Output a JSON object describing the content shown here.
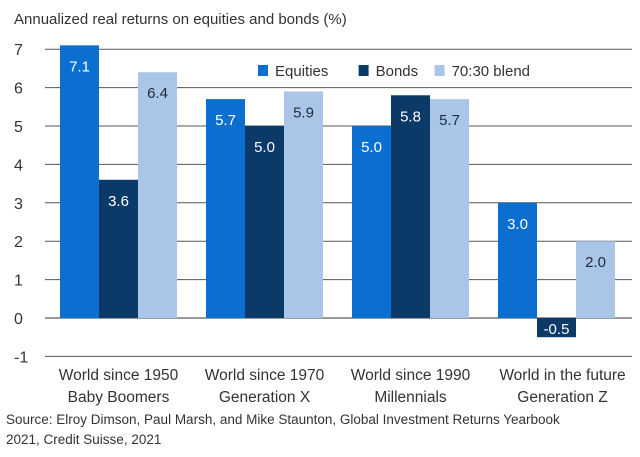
{
  "chart_data": {
    "type": "bar",
    "title": "Annualized real returns on equities and bonds (%)",
    "categories": [
      [
        "World since 1950",
        "Baby Boomers"
      ],
      [
        "World since 1970",
        "Generation X"
      ],
      [
        "World since 1990",
        "Millennials"
      ],
      [
        "World in the future",
        "Generation Z"
      ]
    ],
    "series": [
      {
        "name": "Equities",
        "color": "#0b6fcf",
        "label_color": "#ffffff",
        "values": [
          7.1,
          5.7,
          5.0,
          3.0
        ]
      },
      {
        "name": "Bonds",
        "color": "#0b3a69",
        "label_color": "#ffffff",
        "values": [
          3.6,
          5.0,
          5.8,
          -0.5
        ]
      },
      {
        "name": "70:30 blend",
        "color": "#a9c6e9",
        "label_color": "#1f2a3a",
        "values": [
          6.4,
          5.9,
          5.7,
          2.0
        ]
      }
    ],
    "ylim": [
      -1,
      7
    ],
    "yticks": [
      "-1",
      "0",
      "1",
      "2",
      "3",
      "4",
      "5",
      "6",
      "7"
    ],
    "grid": true,
    "legend": "top-center",
    "source": "Source: Elroy Dimson, Paul Marsh, and Mike Staunton, Global Investment Returns Yearbook 2021, Credit Suisse, 2021",
    "source_lines": [
      "Source: Elroy Dimson, Paul Marsh, and Mike Staunton, Global Investment Returns Yearbook",
      "2021, Credit Suisse, 2021"
    ]
  }
}
